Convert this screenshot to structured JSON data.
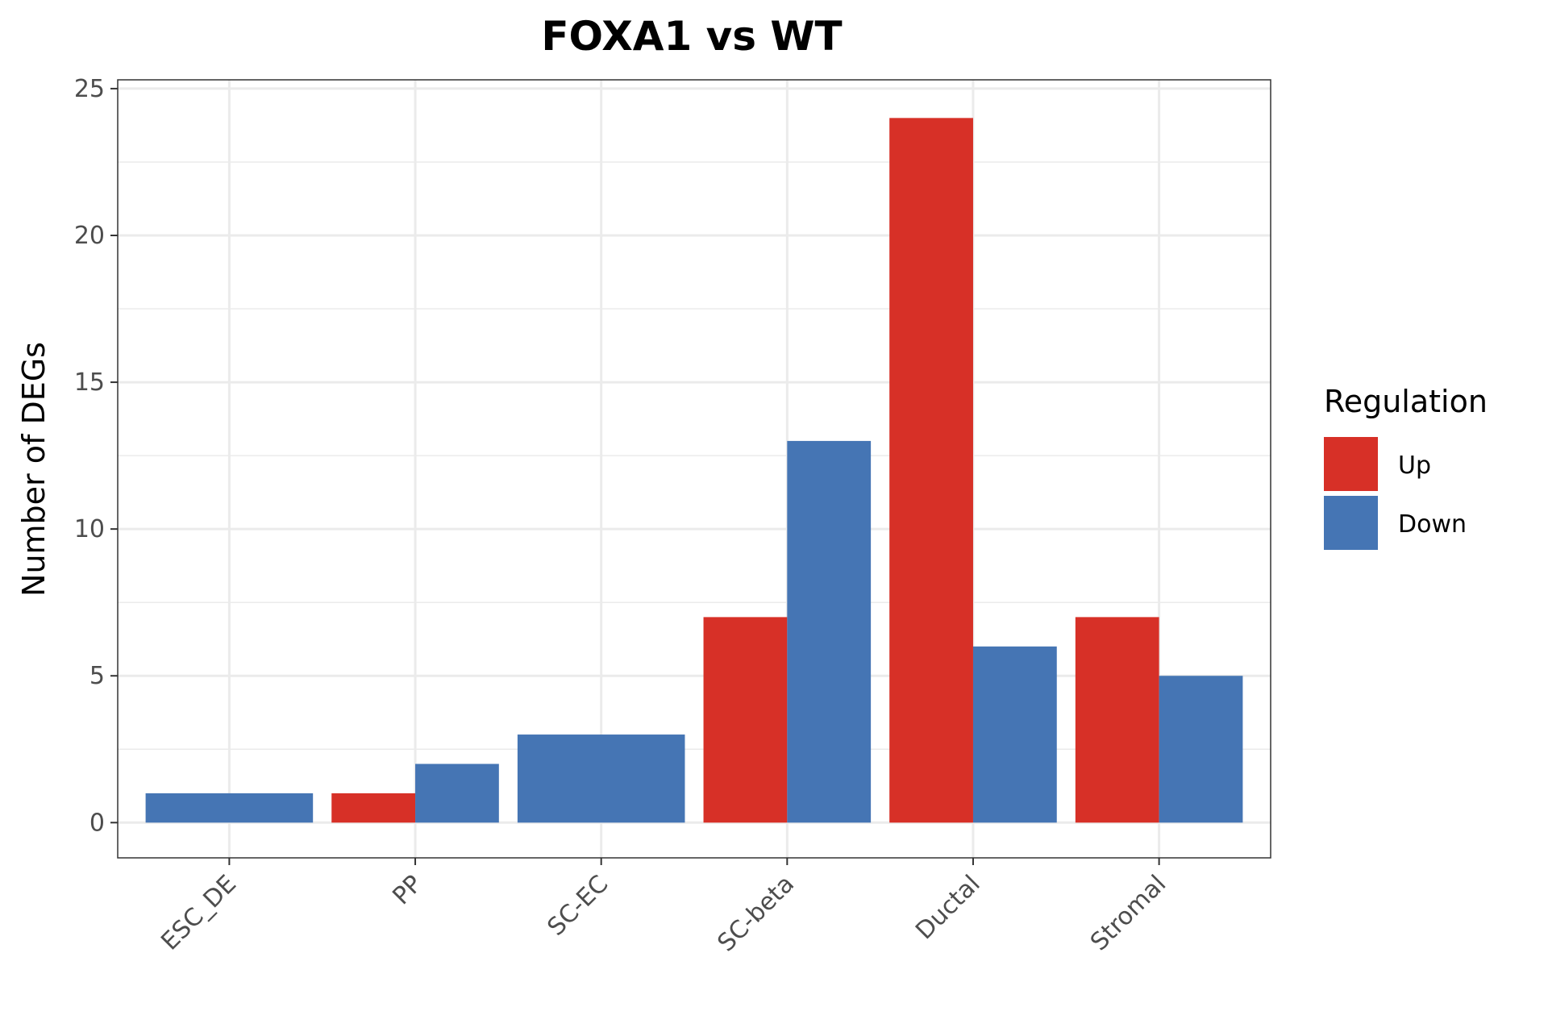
{
  "chart_data": {
    "type": "bar",
    "title": "FOXA1 vs WT",
    "xlabel": "",
    "ylabel": "Number of DEGs",
    "categories": [
      "ESC_DE",
      "PP",
      "SC-EC",
      "SC-beta",
      "Ductal",
      "Stromal"
    ],
    "series": [
      {
        "name": "Up",
        "color": "#d73027",
        "values": [
          0,
          1,
          0,
          7,
          24,
          7
        ]
      },
      {
        "name": "Down",
        "color": "#4575b4",
        "values": [
          1,
          2,
          3,
          13,
          6,
          5
        ]
      }
    ],
    "ylim": [
      -1.2,
      25.3
    ],
    "yticks": [
      0,
      5,
      10,
      15,
      20,
      25
    ],
    "grid": true,
    "legend": {
      "title": "Regulation",
      "position": "right"
    }
  }
}
